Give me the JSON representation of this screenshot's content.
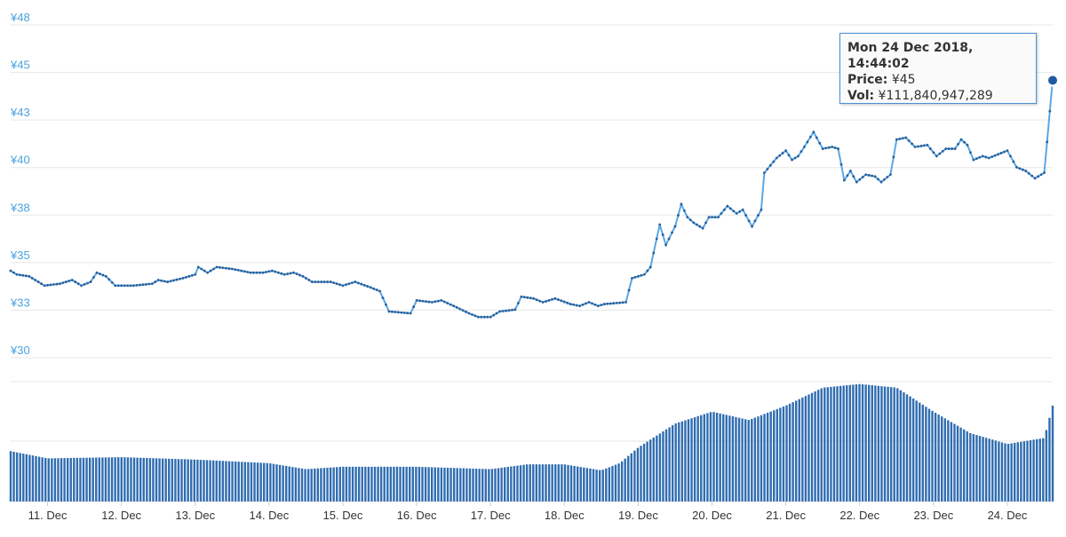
{
  "chart_data": {
    "type": "line",
    "price": {
      "y_ticks": [
        "¥30",
        "¥33",
        "¥35",
        "¥38",
        "¥40",
        "¥43",
        "¥45",
        "¥48"
      ],
      "ylim": [
        30,
        48
      ],
      "series_color": "#5aa7e6",
      "anchors": [
        [
          "2018-12-10 12:00",
          34.7
        ],
        [
          "2018-12-10 14:00",
          34.5
        ],
        [
          "2018-12-10 18:00",
          34.4
        ],
        [
          "2018-12-10 23:00",
          33.9
        ],
        [
          "2018-12-11 04:00",
          34.0
        ],
        [
          "2018-12-11 08:00",
          34.2
        ],
        [
          "2018-12-11 11:00",
          33.9
        ],
        [
          "2018-12-11 14:00",
          34.1
        ],
        [
          "2018-12-11 16:00",
          34.6
        ],
        [
          "2018-12-11 19:00",
          34.4
        ],
        [
          "2018-12-11 22:00",
          33.9
        ],
        [
          "2018-12-12 04:00",
          33.9
        ],
        [
          "2018-12-12 10:00",
          34.0
        ],
        [
          "2018-12-12 12:00",
          34.2
        ],
        [
          "2018-12-12 15:00",
          34.1
        ],
        [
          "2018-12-12 20:00",
          34.3
        ],
        [
          "2018-12-13 00:00",
          34.5
        ],
        [
          "2018-12-13 01:00",
          34.9
        ],
        [
          "2018-12-13 04:00",
          34.6
        ],
        [
          "2018-12-13 07:00",
          34.9
        ],
        [
          "2018-12-13 12:00",
          34.8
        ],
        [
          "2018-12-13 18:00",
          34.6
        ],
        [
          "2018-12-13 22:00",
          34.6
        ],
        [
          "2018-12-14 01:00",
          34.7
        ],
        [
          "2018-12-14 05:00",
          34.5
        ],
        [
          "2018-12-14 08:00",
          34.6
        ],
        [
          "2018-12-14 11:00",
          34.4
        ],
        [
          "2018-12-14 14:00",
          34.1
        ],
        [
          "2018-12-14 20:00",
          34.1
        ],
        [
          "2018-12-15 00:00",
          33.9
        ],
        [
          "2018-12-15 04:00",
          34.1
        ],
        [
          "2018-12-15 09:00",
          33.8
        ],
        [
          "2018-12-15 12:00",
          33.6
        ],
        [
          "2018-12-15 15:00",
          32.5
        ],
        [
          "2018-12-15 22:00",
          32.4
        ],
        [
          "2018-12-16 00:00",
          33.1
        ],
        [
          "2018-12-16 05:00",
          33.0
        ],
        [
          "2018-12-16 08:00",
          33.1
        ],
        [
          "2018-12-16 12:00",
          32.8
        ],
        [
          "2018-12-16 17:00",
          32.4
        ],
        [
          "2018-12-16 20:00",
          32.2
        ],
        [
          "2018-12-17 00:00",
          32.2
        ],
        [
          "2018-12-17 03:00",
          32.5
        ],
        [
          "2018-12-17 08:00",
          32.6
        ],
        [
          "2018-12-17 10:00",
          33.3
        ],
        [
          "2018-12-17 14:00",
          33.2
        ],
        [
          "2018-12-17 17:00",
          33.0
        ],
        [
          "2018-12-17 21:00",
          33.2
        ],
        [
          "2018-12-18 02:00",
          32.9
        ],
        [
          "2018-12-18 05:00",
          32.8
        ],
        [
          "2018-12-18 08:00",
          33.0
        ],
        [
          "2018-12-18 11:00",
          32.8
        ],
        [
          "2018-12-18 13:00",
          32.9
        ],
        [
          "2018-12-18 20:00",
          33.0
        ],
        [
          "2018-12-18 22:00",
          34.3
        ],
        [
          "2018-12-19 02:00",
          34.5
        ],
        [
          "2018-12-19 04:00",
          34.9
        ],
        [
          "2018-12-19 07:00",
          37.2
        ],
        [
          "2018-12-19 09:00",
          36.1
        ],
        [
          "2018-12-19 12:00",
          37.1
        ],
        [
          "2018-12-19 14:00",
          38.3
        ],
        [
          "2018-12-19 16:00",
          37.6
        ],
        [
          "2018-12-19 18:00",
          37.3
        ],
        [
          "2018-12-19 21:00",
          37.0
        ],
        [
          "2018-12-19 23:00",
          37.6
        ],
        [
          "2018-12-20 02:00",
          37.6
        ],
        [
          "2018-12-20 05:00",
          38.2
        ],
        [
          "2018-12-20 08:00",
          37.8
        ],
        [
          "2018-12-20 10:00",
          38.0
        ],
        [
          "2018-12-20 13:00",
          37.1
        ],
        [
          "2018-12-20 16:00",
          38.0
        ],
        [
          "2018-12-20 17:00",
          40.0
        ],
        [
          "2018-12-20 21:00",
          40.8
        ],
        [
          "2018-12-21 00:00",
          41.2
        ],
        [
          "2018-12-21 02:00",
          40.7
        ],
        [
          "2018-12-21 04:00",
          40.9
        ],
        [
          "2018-12-21 06:00",
          41.4
        ],
        [
          "2018-12-21 09:00",
          42.2
        ],
        [
          "2018-12-21 12:00",
          41.3
        ],
        [
          "2018-12-21 15:00",
          41.4
        ],
        [
          "2018-12-21 17:00",
          41.3
        ],
        [
          "2018-12-21 19:00",
          39.6
        ],
        [
          "2018-12-21 21:00",
          40.1
        ],
        [
          "2018-12-21 23:00",
          39.5
        ],
        [
          "2018-12-22 02:00",
          39.9
        ],
        [
          "2018-12-22 05:00",
          39.8
        ],
        [
          "2018-12-22 07:00",
          39.5
        ],
        [
          "2018-12-22 10:00",
          39.9
        ],
        [
          "2018-12-22 12:00",
          41.8
        ],
        [
          "2018-12-22 15:00",
          41.9
        ],
        [
          "2018-12-22 18:00",
          41.4
        ],
        [
          "2018-12-22 22:00",
          41.5
        ],
        [
          "2018-12-23 01:00",
          40.9
        ],
        [
          "2018-12-23 04:00",
          41.3
        ],
        [
          "2018-12-23 07:00",
          41.3
        ],
        [
          "2018-12-23 09:00",
          41.8
        ],
        [
          "2018-12-23 11:00",
          41.5
        ],
        [
          "2018-12-23 13:00",
          40.7
        ],
        [
          "2018-12-23 16:00",
          40.9
        ],
        [
          "2018-12-23 18:00",
          40.8
        ],
        [
          "2018-12-23 21:00",
          41.0
        ],
        [
          "2018-12-24 00:00",
          41.2
        ],
        [
          "2018-12-24 03:00",
          40.3
        ],
        [
          "2018-12-24 06:00",
          40.1
        ],
        [
          "2018-12-24 09:00",
          39.7
        ],
        [
          "2018-12-24 12:00",
          40.0
        ],
        [
          "2018-12-24 14:44",
          45.0
        ]
      ]
    },
    "volume": {
      "bar_color": "#2f6db0",
      "anchors": [
        [
          "2018-12-10 12:00",
          0.42
        ],
        [
          "2018-12-11 00:00",
          0.36
        ],
        [
          "2018-12-12 00:00",
          0.37
        ],
        [
          "2018-12-13 00:00",
          0.35
        ],
        [
          "2018-12-14 00:00",
          0.32
        ],
        [
          "2018-12-14 12:00",
          0.27
        ],
        [
          "2018-12-15 00:00",
          0.29
        ],
        [
          "2018-12-16 00:00",
          0.29
        ],
        [
          "2018-12-17 00:00",
          0.27
        ],
        [
          "2018-12-17 12:00",
          0.31
        ],
        [
          "2018-12-18 00:00",
          0.31
        ],
        [
          "2018-12-18 12:00",
          0.26
        ],
        [
          "2018-12-18 18:00",
          0.32
        ],
        [
          "2018-12-19 00:00",
          0.45
        ],
        [
          "2018-12-19 12:00",
          0.65
        ],
        [
          "2018-12-20 00:00",
          0.75
        ],
        [
          "2018-12-20 12:00",
          0.68
        ],
        [
          "2018-12-21 00:00",
          0.8
        ],
        [
          "2018-12-21 12:00",
          0.95
        ],
        [
          "2018-12-22 00:00",
          0.98
        ],
        [
          "2018-12-22 12:00",
          0.95
        ],
        [
          "2018-12-23 00:00",
          0.75
        ],
        [
          "2018-12-23 12:00",
          0.57
        ],
        [
          "2018-12-24 00:00",
          0.48
        ],
        [
          "2018-12-24 12:00",
          0.53
        ],
        [
          "2018-12-24 14:44",
          0.8
        ]
      ]
    },
    "x_ticks": [
      "11. Dec",
      "12. Dec",
      "13. Dec",
      "14. Dec",
      "15. Dec",
      "16. Dec",
      "17. Dec",
      "18. Dec",
      "19. Dec",
      "20. Dec",
      "21. Dec",
      "22. Dec",
      "23. Dec",
      "24. Dec"
    ],
    "xlim": [
      "2018-12-10 12:00",
      "2018-12-24 14:44"
    ],
    "grid": true,
    "highlight": [
      "2018-12-24 14:44",
      45.0
    ]
  },
  "tooltip": {
    "date": "Mon 24 Dec 2018, 14:44:02",
    "price_label": "Price:",
    "price_value": "¥45",
    "vol_label": "Vol:",
    "vol_value": "¥111,840,947,289"
  },
  "colors": {
    "axis_label": "#4aa3df",
    "grid": "#e6e6e6"
  }
}
